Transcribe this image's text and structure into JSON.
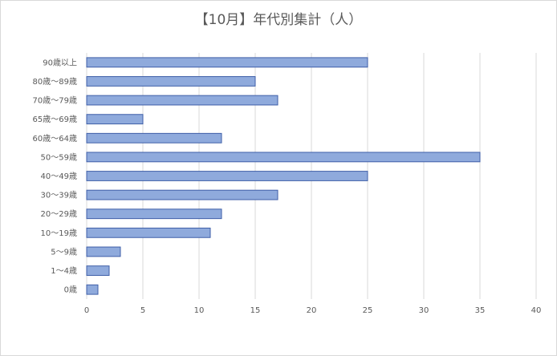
{
  "chart_data": {
    "type": "bar",
    "orientation": "horizontal",
    "title": "【10月】年代別集計（人）",
    "categories": [
      "90歳以上",
      "80歳～89歳",
      "70歳～79歳",
      "65歳～69歳",
      "60歳～64歳",
      "50～59歳",
      "40～49歳",
      "30～39歳",
      "20～29歳",
      "10～19歳",
      "5～9歳",
      "1～4歳",
      "0歳"
    ],
    "values": [
      25,
      15,
      17,
      5,
      12,
      35,
      25,
      17,
      12,
      11,
      3,
      2,
      1
    ],
    "xlim": [
      0,
      40
    ],
    "xticks": [
      0,
      5,
      10,
      15,
      20,
      25,
      30,
      35,
      40
    ],
    "grid": true,
    "bar_color": "#8faadc",
    "bar_border_color": "#3f5fa8",
    "grid_color": "#d9d9d9"
  }
}
